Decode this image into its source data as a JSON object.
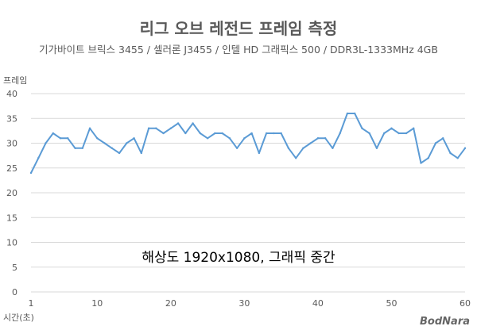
{
  "chart_data": {
    "type": "line",
    "title": "리그 오브 레전드 프레임 측정",
    "subtitle": "기가바이트 브릭스 3455 / 셀러론 J3455 / 인텔 HD 그래픽스 500 / DDR3L-1333MHz 4GB",
    "ylabel": "프레임",
    "xlabel": "시간(초)",
    "annotation": "해상도 1920x1080, 그래픽 중간",
    "watermark": "BodNara",
    "ylim": [
      0,
      40
    ],
    "xlim": [
      1,
      60
    ],
    "y_ticks": [
      "0",
      "5",
      "10",
      "15",
      "20",
      "25",
      "30",
      "35",
      "40"
    ],
    "x_ticks": [
      "1",
      "10",
      "20",
      "30",
      "40",
      "50",
      "60"
    ],
    "grid": true,
    "line_color": "#5B9BD5",
    "grid_color": "#D9D9D9",
    "x": [
      1,
      2,
      3,
      4,
      5,
      6,
      7,
      8,
      9,
      10,
      11,
      12,
      13,
      14,
      15,
      16,
      17,
      18,
      19,
      20,
      21,
      22,
      23,
      24,
      25,
      26,
      27,
      28,
      29,
      30,
      31,
      32,
      33,
      34,
      35,
      36,
      37,
      38,
      39,
      40,
      41,
      42,
      43,
      44,
      45,
      46,
      47,
      48,
      49,
      50,
      51,
      52,
      53,
      54,
      55,
      56,
      57,
      58,
      59,
      60
    ],
    "values": [
      24,
      27,
      30,
      32,
      31,
      31,
      29,
      29,
      33,
      31,
      30,
      29,
      28,
      30,
      31,
      28,
      33,
      33,
      32,
      33,
      34,
      32,
      34,
      32,
      31,
      32,
      32,
      31,
      29,
      31,
      32,
      28,
      32,
      32,
      32,
      29,
      27,
      29,
      30,
      31,
      31,
      29,
      32,
      36,
      36,
      33,
      32,
      29,
      32,
      33,
      32,
      32,
      33,
      26,
      27,
      30,
      31,
      28,
      27,
      29
    ]
  }
}
